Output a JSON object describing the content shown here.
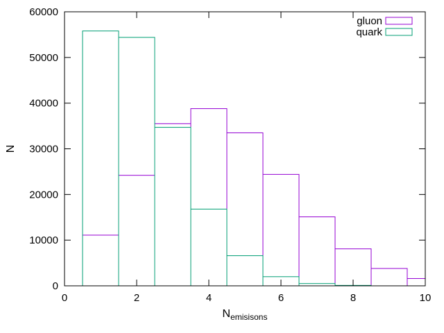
{
  "chart_data": {
    "type": "histogram",
    "title": "",
    "xlabel_main": "N",
    "xlabel_sub": "emisisons",
    "ylabel": "N",
    "xlim": [
      0,
      10
    ],
    "ylim": [
      0,
      60000
    ],
    "xticks": [
      0,
      2,
      4,
      6,
      8,
      10
    ],
    "yticks": [
      0,
      10000,
      20000,
      30000,
      40000,
      50000,
      60000
    ],
    "grid": false,
    "legend_position": "top-right",
    "bin_edges": [
      0.5,
      1.5,
      2.5,
      3.5,
      4.5,
      5.5,
      6.5,
      7.5,
      8.5,
      9.5,
      10.5
    ],
    "series": [
      {
        "name": "gluon",
        "color": "#9400d3",
        "values": [
          11100,
          24200,
          35500,
          38800,
          33500,
          24400,
          15100,
          8100,
          3800,
          1600
        ]
      },
      {
        "name": "quark",
        "color": "#009e73",
        "values": [
          55800,
          54400,
          34700,
          16800,
          6600,
          2000,
          500,
          100,
          0,
          0
        ]
      }
    ]
  }
}
